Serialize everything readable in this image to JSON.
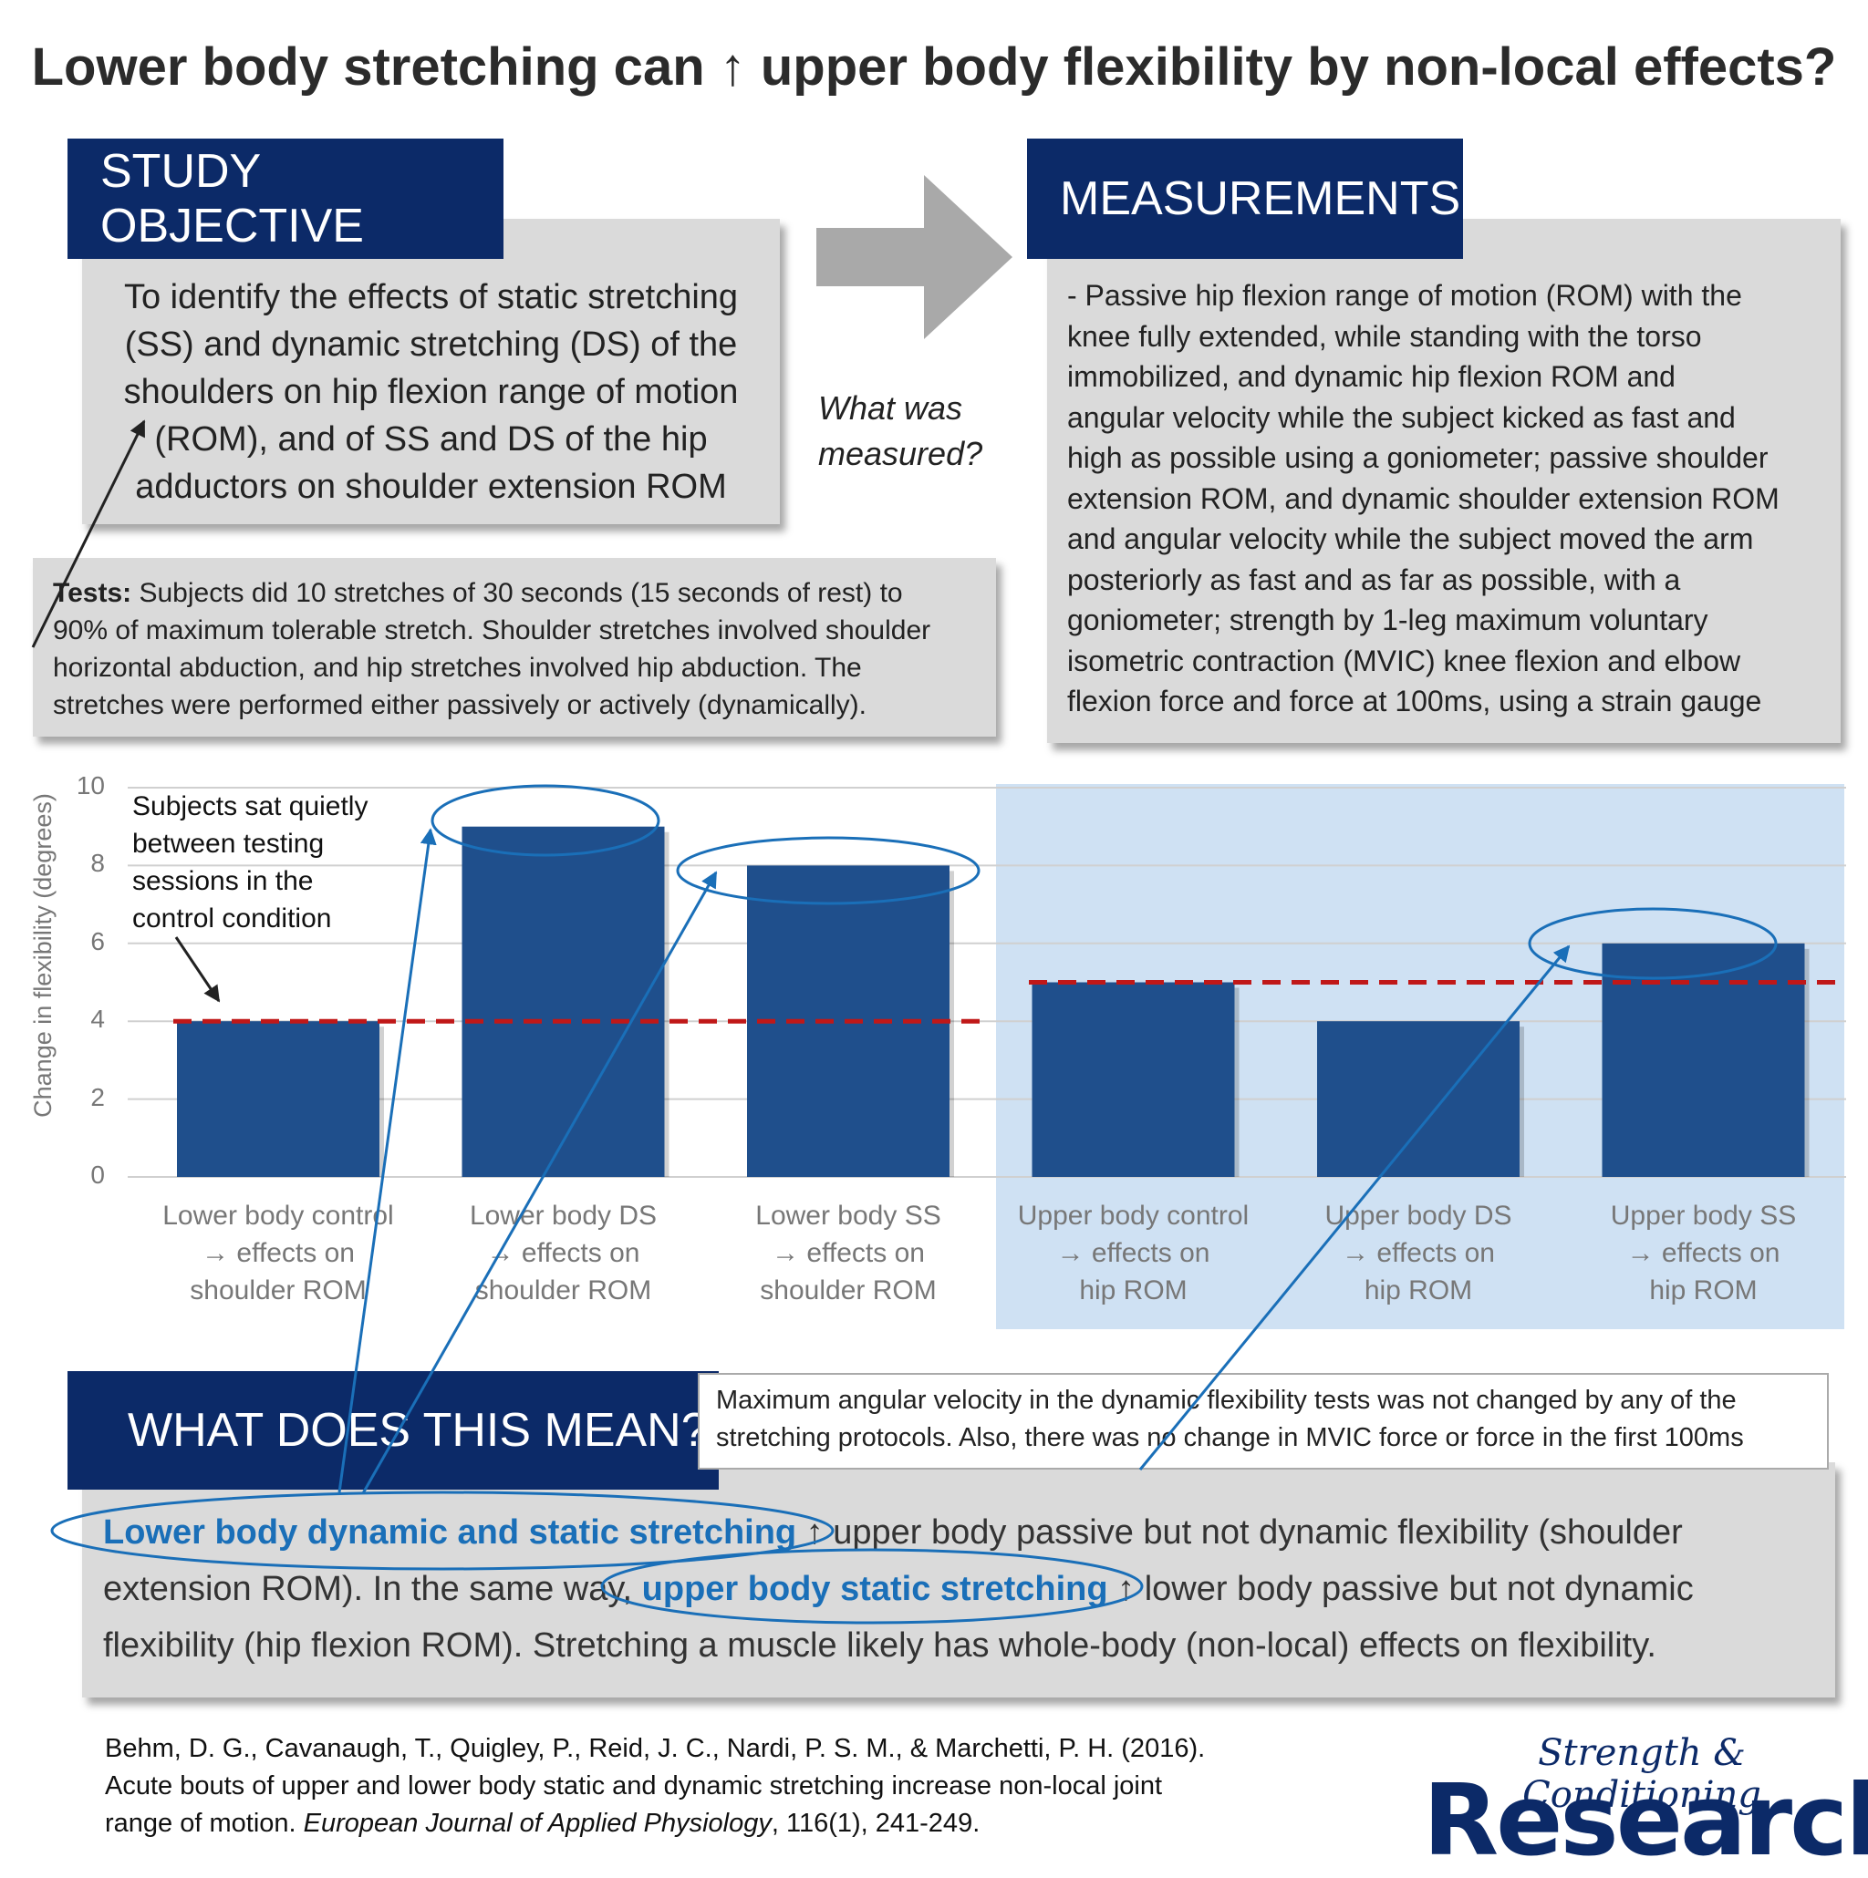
{
  "title_before": "Lower body stretching can ",
  "title_arrow": "↑",
  "title_after": " upper body flexibility by non-local effects?",
  "objective": {
    "header": "STUDY OBJECTIVE",
    "lines": [
      "To identify the effects of static stretching",
      "(SS) and dynamic stretching (DS) of the",
      "shoulders on hip flexion range of motion",
      "(ROM), and of SS and DS of the hip",
      "adductors on shoulder extension ROM"
    ]
  },
  "question": [
    "What was",
    "measured?"
  ],
  "measurements": {
    "header": "MEASUREMENTS",
    "lines": [
      "- Passive hip flexion range of motion (ROM) with the",
      "knee fully extended, while standing with the torso",
      "immobilized, and dynamic hip flexion ROM and",
      "angular velocity while the subject kicked as fast and",
      "high as possible using a goniometer; passive shoulder",
      "extension ROM, and dynamic shoulder extension ROM",
      "and angular velocity while the subject moved the arm",
      "posteriorly as fast and as far as possible, with a",
      "goniometer; strength by 1-leg maximum voluntary",
      "isometric contraction (MVIC) knee flexion and elbow",
      "flexion force and force at 100ms, using a strain gauge"
    ]
  },
  "tests": {
    "label": "Tests:",
    "lines": [
      " Subjects did 10 stretches of 30 seconds (15 seconds of rest) to",
      "90% of maximum tolerable stretch. Shoulder stretches involved shoulder",
      "horizontal abduction, and hip stretches involved hip abduction. The",
      "stretches were performed either passively or actively (dynamically)."
    ]
  },
  "chart_data": {
    "type": "bar",
    "categories": [
      [
        "Lower body control",
        "→ effects on",
        "shoulder ROM"
      ],
      [
        "Lower body DS",
        "→ effects on",
        "shoulder ROM"
      ],
      [
        "Lower body SS",
        "→ effects on",
        "shoulder ROM"
      ],
      [
        "Upper body control",
        "→ effects on",
        "hip ROM"
      ],
      [
        "Upper body DS",
        "→ effects on",
        "hip ROM"
      ],
      [
        "Upper body SS",
        "→ effects on",
        "hip ROM"
      ]
    ],
    "values": [
      4,
      9,
      8,
      5,
      4,
      6
    ],
    "ylabel": "Change in flexibility (degrees)",
    "yticks": [
      "0",
      "2",
      "4",
      "6",
      "8",
      "10"
    ],
    "ylim": [
      0,
      10
    ],
    "reference_lines": [
      {
        "value": 4,
        "applies_to": "lower body groups"
      },
      {
        "value": 5,
        "applies_to": "upper body groups"
      }
    ],
    "highlighted": [
      "Lower body DS",
      "Lower body SS",
      "Upper body SS"
    ],
    "bar_color": "#1f4f8c",
    "reference_color": "#c01818",
    "shaded_region_color": "#cfe1f3",
    "grid": true
  },
  "annotation": [
    "Subjects sat quietly",
    "between testing",
    "sessions in the",
    "control condition"
  ],
  "note": [
    "Maximum angular velocity in the dynamic flexibility tests was not changed by any of the",
    "stretching protocols. Also, there was no change in MVIC force or force in the first 100ms"
  ],
  "meaning": {
    "header": "WHAT DOES THIS MEAN?",
    "l1_hl": "Lower body dynamic and static stretching",
    "l1_rest": " ↑ upper body passive but not dynamic flexibility (shoulder",
    "l2_a": "extension ROM). In the same way, ",
    "l2_hl": "upper body static stretching",
    "l2_rest": " ↑ lower body passive but not dynamic",
    "l3": "flexibility (hip flexion ROM). Stretching a muscle likely has whole-body (non-local) effects on flexibility."
  },
  "reference": {
    "l1": "Behm, D. G., Cavanaugh, T., Quigley, P., Reid, J. C., Nardi, P. S. M., & Marchetti, P. H. (2016).",
    "l2": "Acute bouts of upper and lower body static and dynamic stretching increase non-local joint",
    "l3_a": "range of motion. ",
    "l3_journal": "European Journal of Applied Physiology",
    "l3_b": ", 116(1), 241-249."
  },
  "logo": {
    "script": "Strength & Conditioning",
    "word": "Research"
  },
  "colors": {
    "navy": "#0c2a68",
    "highlight_blue": "#1a6fb8",
    "panel_grey": "#dadada"
  }
}
